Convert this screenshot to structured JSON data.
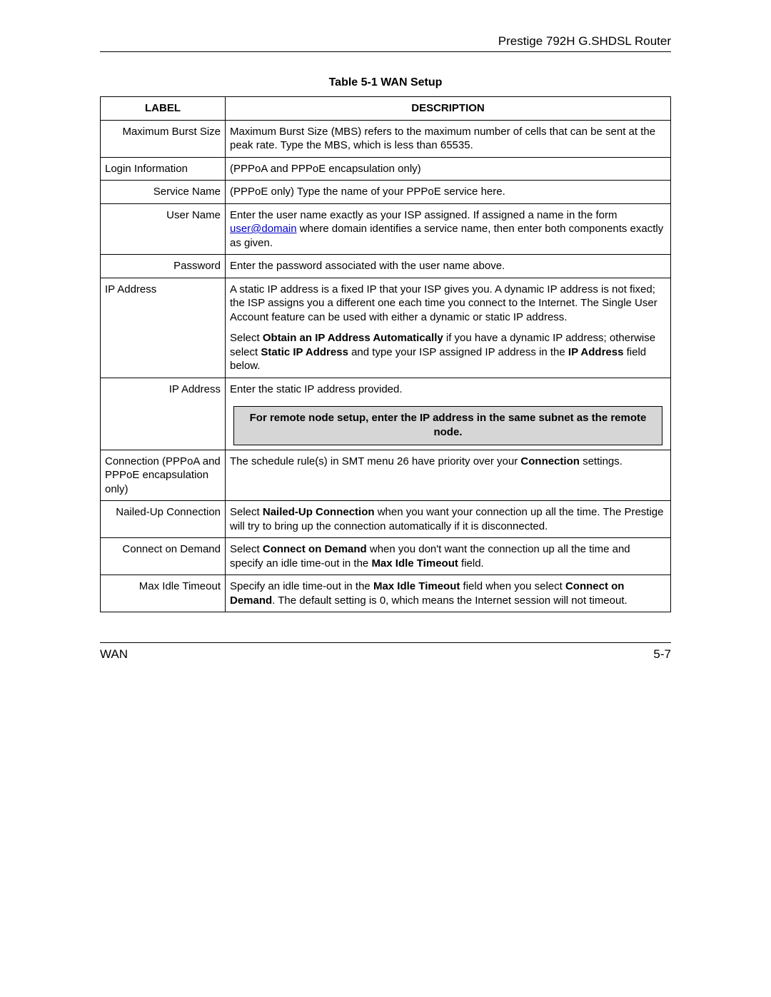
{
  "header": {
    "title": "Prestige 792H G.SHDSL Router"
  },
  "table": {
    "title": "Table 5-1 WAN Setup",
    "columns": {
      "label": "LABEL",
      "description": "DESCRIPTION"
    },
    "rows": {
      "r0": {
        "label": "Maximum Burst Size",
        "desc": "Maximum Burst Size (MBS) refers to the maximum number of cells that can be sent at the peak rate. Type the MBS, which is less than 65535."
      },
      "r1": {
        "label": "Login Information",
        "desc": "(PPPoA and PPPoE encapsulation only)"
      },
      "r2": {
        "label": "Service Name",
        "desc": "(PPPoE only) Type the name of your PPPoE service here."
      },
      "r3": {
        "label": "User Name",
        "desc_a": "Enter the user name exactly as your ISP assigned. If assigned a name in the form ",
        "link": "user@domain",
        "desc_b": " where domain identifies a service name, then enter both components exactly as given."
      },
      "r4": {
        "label": "Password",
        "desc": "Enter the password associated with the user name above."
      },
      "r5": {
        "label": "IP Address",
        "p1": "A static IP address is a fixed IP that your ISP gives you. A dynamic IP address is not fixed; the ISP assigns you a different one each time you connect to the Internet. The Single User Account feature can be used with either a dynamic or static IP address.",
        "p2_a": "Select ",
        "p2_b1": "Obtain an IP Address Automatically",
        "p2_c": " if you have a dynamic IP address; otherwise select ",
        "p2_b2": "Static IP Address",
        "p2_d": " and type your ISP assigned IP address in the ",
        "p2_b3": "IP Address",
        "p2_e": " field below."
      },
      "r6": {
        "label": "IP Address",
        "desc": "Enter the static IP address provided.",
        "note": "For remote node setup, enter the IP address in the same subnet as the remote node."
      },
      "r7": {
        "label": "Connection (PPPoA and PPPoE encapsulation only)",
        "desc_a": "The schedule rule(s) in SMT menu 26 have priority over your ",
        "desc_b1": "Connection",
        "desc_c": " settings."
      },
      "r8": {
        "label": "Nailed-Up Connection",
        "desc_a": "Select ",
        "desc_b1": "Nailed-Up Connection",
        "desc_c": " when you want your connection up all the time. The Prestige will try to bring up the connection automatically if it is disconnected."
      },
      "r9": {
        "label": "Connect on Demand",
        "desc_a": "Select ",
        "desc_b1": "Connect on Demand",
        "desc_c": " when you don't want the connection up all the time and specify an idle time-out in the ",
        "desc_b2": "Max Idle Timeout",
        "desc_d": " field."
      },
      "r10": {
        "label": "Max Idle Timeout",
        "desc_a": "Specify an idle time-out in the ",
        "desc_b1": "Max Idle Timeout",
        "desc_c": " field when you select ",
        "desc_b2": "Connect on Demand",
        "desc_d": ". The default setting is 0, which means the Internet session will not timeout."
      }
    }
  },
  "footer": {
    "left": "WAN",
    "right": "5-7"
  }
}
